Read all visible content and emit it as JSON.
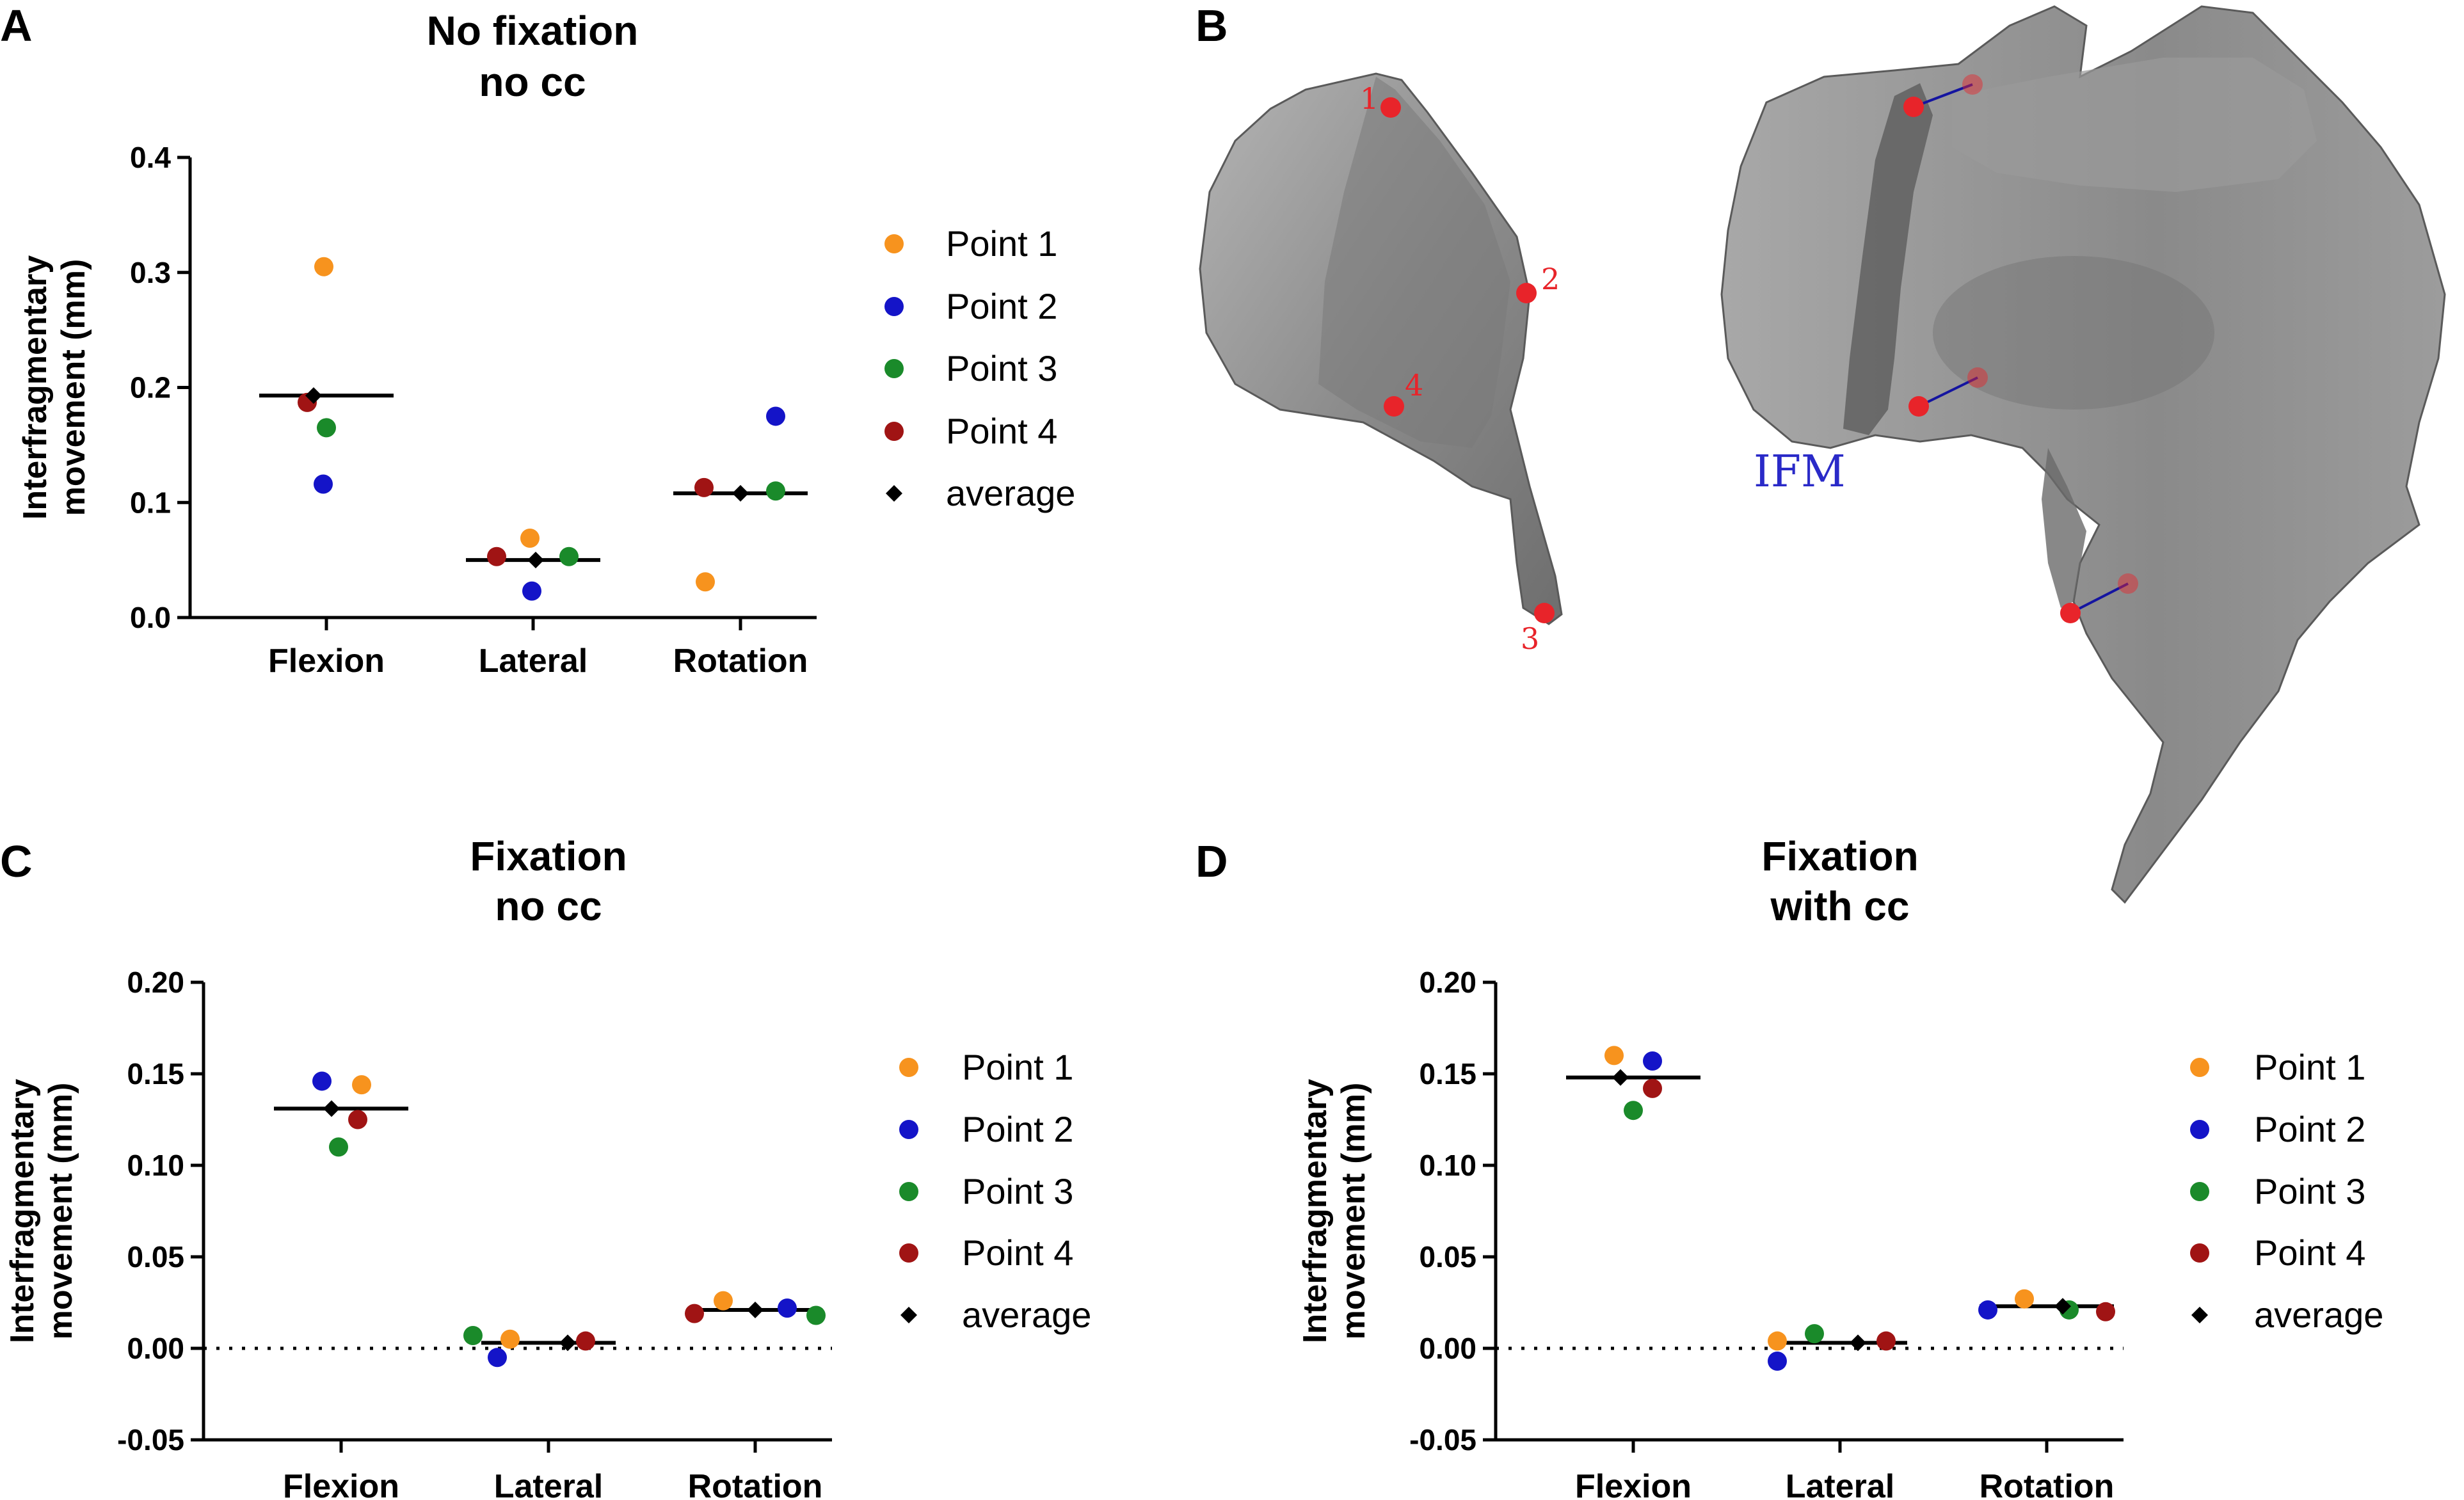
{
  "panels": {
    "a": "A",
    "b": "B",
    "c": "C",
    "d": "D"
  },
  "colors": {
    "point1": "#f7931e",
    "point2": "#1414c8",
    "point3": "#1a8a2a",
    "point4": "#a01414",
    "average": "#000000",
    "model_label": "#e8242a",
    "ifm": "#2a2ac8"
  },
  "legend": {
    "markers": [
      "circle",
      "circle",
      "circle",
      "circle",
      "diamond"
    ],
    "labels": [
      "Point 1",
      "Point 2",
      "Point 3",
      "Point 4",
      "average"
    ]
  },
  "model": {
    "point_labels": [
      "1",
      "2",
      "3",
      "4"
    ],
    "ifm_label": "IFM"
  },
  "chart_data": [
    {
      "type": "scatter",
      "panel": "A",
      "title": [
        "No fixation",
        "no cc"
      ],
      "ylabel": [
        "Interfragmentary",
        "movement (mm)"
      ],
      "xlabel": "",
      "categories": [
        "Flexion",
        "Lateral",
        "Rotation"
      ],
      "ylim": [
        0,
        0.4
      ],
      "yticks": [
        "0.0",
        "0.1",
        "0.2",
        "0.3",
        "0.4"
      ],
      "ytick_values": [
        0,
        0.1,
        0.2,
        0.3,
        0.4
      ],
      "zero_line": false,
      "series": [
        {
          "name": "Point 1",
          "values": [
            0.305,
            0.069,
            0.031
          ]
        },
        {
          "name": "Point 2",
          "values": [
            0.116,
            0.023,
            0.175
          ]
        },
        {
          "name": "Point 3",
          "values": [
            0.165,
            0.053,
            0.11
          ]
        },
        {
          "name": "Point 4",
          "values": [
            0.187,
            0.053,
            0.113
          ]
        }
      ],
      "average": [
        0.193,
        0.05,
        0.108
      ]
    },
    {
      "type": "scatter",
      "panel": "C",
      "title": [
        "Fixation",
        "no cc"
      ],
      "ylabel": [
        "Interfragmentary",
        "movement (mm)"
      ],
      "xlabel": "",
      "categories": [
        "Flexion",
        "Lateral",
        "Rotation"
      ],
      "ylim": [
        -0.05,
        0.2
      ],
      "yticks": [
        "-0.05",
        "0.00",
        "0.05",
        "0.10",
        "0.15",
        "0.20"
      ],
      "ytick_values": [
        -0.05,
        0,
        0.05,
        0.1,
        0.15,
        0.2
      ],
      "zero_line": true,
      "series": [
        {
          "name": "Point 1",
          "values": [
            0.144,
            0.005,
            0.026
          ]
        },
        {
          "name": "Point 2",
          "values": [
            0.146,
            -0.005,
            0.022
          ]
        },
        {
          "name": "Point 3",
          "values": [
            0.11,
            0.007,
            0.018
          ]
        },
        {
          "name": "Point 4",
          "values": [
            0.125,
            0.004,
            0.019
          ]
        }
      ],
      "average": [
        0.131,
        0.003,
        0.021
      ]
    },
    {
      "type": "scatter",
      "panel": "D",
      "title": [
        "Fixation",
        "with cc"
      ],
      "ylabel": [
        "Interfragmentary",
        "movement (mm)"
      ],
      "xlabel": "",
      "categories": [
        "Flexion",
        "Lateral",
        "Rotation"
      ],
      "ylim": [
        -0.05,
        0.2
      ],
      "yticks": [
        "-0.05",
        "0.00",
        "0.05",
        "0.10",
        "0.15",
        "0.20"
      ],
      "ytick_values": [
        -0.05,
        0,
        0.05,
        0.1,
        0.15,
        0.2
      ],
      "zero_line": true,
      "series": [
        {
          "name": "Point 1",
          "values": [
            0.16,
            0.004,
            0.027
          ]
        },
        {
          "name": "Point 2",
          "values": [
            0.157,
            -0.007,
            0.021
          ]
        },
        {
          "name": "Point 3",
          "values": [
            0.13,
            0.008,
            0.021
          ]
        },
        {
          "name": "Point 4",
          "values": [
            0.142,
            0.004,
            0.02
          ]
        }
      ],
      "average": [
        0.148,
        0.003,
        0.023
      ]
    }
  ]
}
